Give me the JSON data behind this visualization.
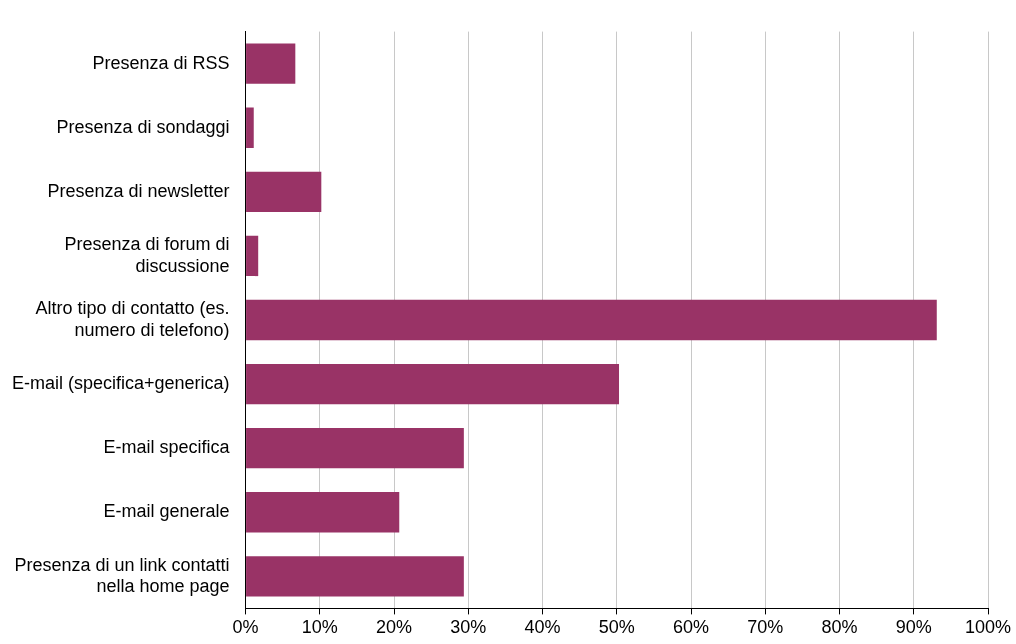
{
  "chart_data": {
    "type": "bar",
    "orientation": "horizontal",
    "categories": [
      "Presenza di RSS",
      "Presenza di sondaggi",
      "Presenza di newsletter",
      "Presenza di forum di discussione",
      "Altro tipo di contatto (es. numero di telefono)",
      "E-mail (specifica+generica)",
      "E-mail specifica",
      "E-mail generale",
      "Presenza di un link contatti nella home page"
    ],
    "values": [
      6.7,
      1.1,
      10.2,
      1.7,
      93.1,
      50.3,
      29.4,
      20.7,
      29.4
    ],
    "color": "#993366",
    "xlim": [
      0,
      100
    ],
    "xticks": [
      {
        "value": 0,
        "label": "0%"
      },
      {
        "value": 10,
        "label": "10%"
      },
      {
        "value": 20,
        "label": "20%"
      },
      {
        "value": 30,
        "label": "30%"
      },
      {
        "value": 40,
        "label": "40%"
      },
      {
        "value": 50,
        "label": "50%"
      },
      {
        "value": 60,
        "label": "60%"
      },
      {
        "value": 70,
        "label": "70%"
      },
      {
        "value": 80,
        "label": "80%"
      },
      {
        "value": 90,
        "label": "90%"
      },
      {
        "value": 100,
        "label": "100%"
      }
    ],
    "grid": "x",
    "legend": false
  }
}
